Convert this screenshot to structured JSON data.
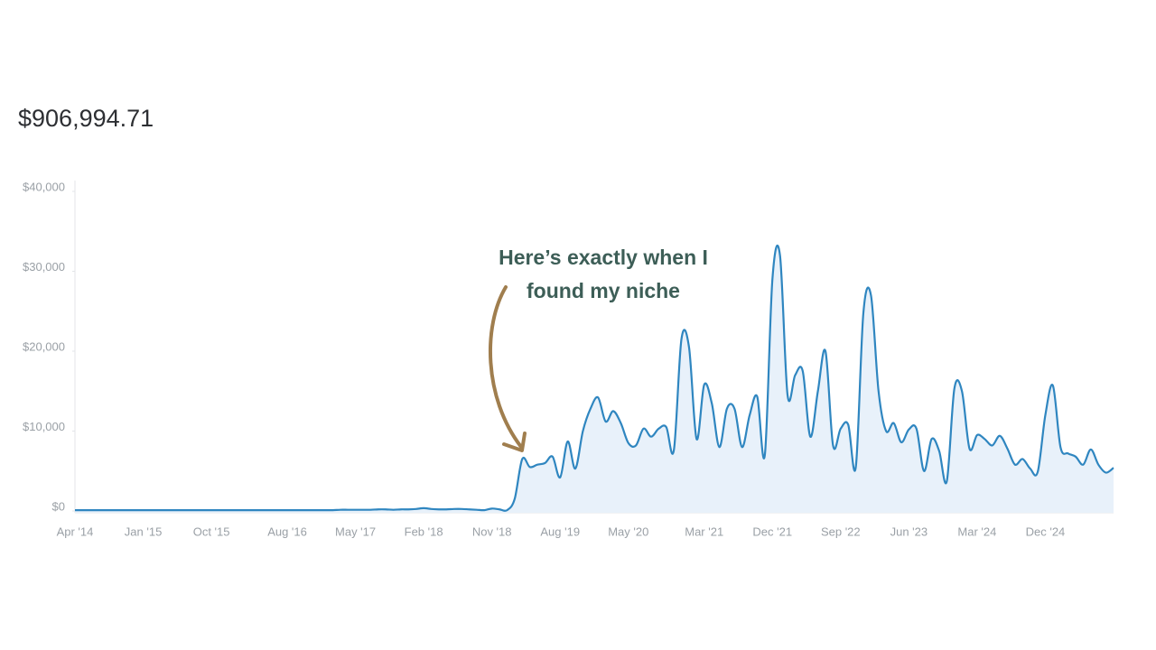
{
  "chart_data": {
    "type": "area",
    "title": "$906,994.71",
    "annotation": [
      "Here’s exactly when I",
      "found my niche"
    ],
    "color": "#2f86c0",
    "fill": "#e8f1fa",
    "categories": [
      "Apr '14",
      null,
      null,
      null,
      null,
      null,
      null,
      null,
      null,
      "Jan '15",
      null,
      null,
      null,
      null,
      null,
      null,
      null,
      null,
      "Oct '15",
      null,
      null,
      null,
      null,
      null,
      null,
      null,
      null,
      null,
      "Aug '16",
      null,
      null,
      null,
      null,
      null,
      null,
      null,
      null,
      "May '17",
      null,
      null,
      null,
      null,
      null,
      null,
      null,
      null,
      "Feb '18",
      null,
      null,
      null,
      null,
      null,
      null,
      null,
      null,
      "Nov '18",
      null,
      null,
      null,
      null,
      null,
      null,
      null,
      null,
      "Aug '19",
      null,
      null,
      null,
      null,
      null,
      null,
      null,
      null,
      "May '20",
      null,
      null,
      null,
      null,
      null,
      null,
      null,
      null,
      null,
      "Mar '21",
      null,
      null,
      null,
      null,
      null,
      null,
      null,
      null,
      "Dec '21",
      null,
      null,
      null,
      null,
      null,
      null,
      null,
      null,
      "Sep '22",
      null,
      null,
      null,
      null,
      null,
      null,
      null,
      null,
      "Jun '23",
      null,
      null,
      null,
      null,
      null,
      null,
      null,
      null,
      "Mar '24",
      null,
      null,
      null,
      null,
      null,
      null,
      null,
      null,
      "Dec '24",
      null,
      null,
      null,
      null,
      null,
      null,
      null,
      null,
      null
    ],
    "values": [
      100,
      100,
      100,
      100,
      100,
      100,
      100,
      100,
      100,
      100,
      100,
      100,
      100,
      100,
      100,
      100,
      100,
      100,
      100,
      100,
      100,
      100,
      100,
      100,
      100,
      100,
      100,
      100,
      100,
      100,
      100,
      100,
      100,
      100,
      100,
      150,
      150,
      150,
      150,
      150,
      200,
      200,
      150,
      200,
      200,
      250,
      350,
      250,
      200,
      200,
      250,
      250,
      200,
      150,
      100,
      300,
      200,
      100,
      1500,
      6500,
      5500,
      5800,
      6000,
      6800,
      4200,
      8700,
      5300,
      10000,
      12800,
      14200,
      11200,
      12500,
      11000,
      8500,
      8200,
      10300,
      9300,
      10300,
      10500,
      7600,
      21500,
      20500,
      9000,
      15800,
      13500,
      8000,
      12800,
      12800,
      8000,
      12000,
      14300,
      7000,
      29000,
      32000,
      14500,
      17000,
      17500,
      9300,
      15000,
      20000,
      8200,
      10300,
      10800,
      5500,
      24800,
      27000,
      15000,
      10000,
      11000,
      8600,
      10200,
      10300,
      5000,
      9000,
      7500,
      3700,
      15300,
      15000,
      7800,
      9500,
      9000,
      8200,
      9400,
      7800,
      5800,
      6500,
      5300,
      4900,
      12000,
      15700,
      8000,
      7200,
      6800,
      5800,
      7700,
      5800,
      4800,
      5400
    ],
    "ylim": [
      0,
      40000
    ],
    "yticks": [
      {
        "value": 0,
        "label": "$0"
      },
      {
        "value": 10000,
        "label": "$10,000"
      },
      {
        "value": 20000,
        "label": "$20,000"
      },
      {
        "value": 30000,
        "label": "$30,000"
      },
      {
        "value": 40000,
        "label": "$40,000"
      }
    ]
  }
}
